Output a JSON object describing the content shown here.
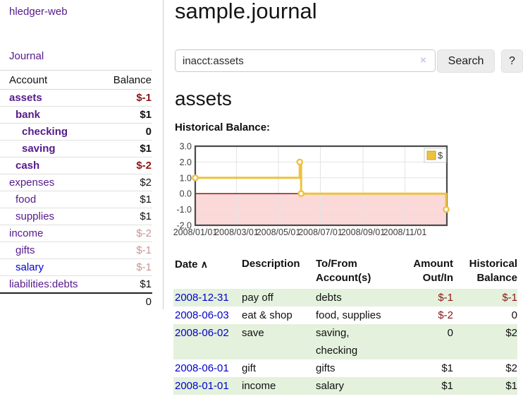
{
  "app": {
    "brand": "hledger-web",
    "nav_journal": "Journal"
  },
  "sidebar": {
    "header_account": "Account",
    "header_balance": "Balance",
    "accounts": [
      {
        "name": "assets",
        "indent": 1,
        "bold": true,
        "link": "purple",
        "balance": "$-1",
        "bal_style": "neg"
      },
      {
        "name": "bank",
        "indent": 2,
        "bold": true,
        "link": "purple",
        "balance": "$1",
        "bal_style": ""
      },
      {
        "name": "checking",
        "indent": 3,
        "bold": true,
        "link": "purple",
        "balance": "0",
        "bal_style": ""
      },
      {
        "name": "saving",
        "indent": 3,
        "bold": true,
        "link": "purple",
        "balance": "$1",
        "bal_style": ""
      },
      {
        "name": "cash",
        "indent": 2,
        "bold": true,
        "link": "purple",
        "balance": "$-2",
        "bal_style": "neg"
      },
      {
        "name": "expenses",
        "indent": 1,
        "bold": false,
        "link": "purple",
        "balance": "$2",
        "bal_style": ""
      },
      {
        "name": "food",
        "indent": 2,
        "bold": false,
        "link": "purple",
        "balance": "$1",
        "bal_style": ""
      },
      {
        "name": "supplies",
        "indent": 2,
        "bold": false,
        "link": "purple",
        "balance": "$1",
        "bal_style": ""
      },
      {
        "name": "income",
        "indent": 1,
        "bold": false,
        "link": "purple",
        "balance": "$-2",
        "bal_style": "dim"
      },
      {
        "name": "gifts",
        "indent": 2,
        "bold": false,
        "link": "purple",
        "balance": "$-1",
        "bal_style": "dim"
      },
      {
        "name": "salary",
        "indent": 2,
        "bold": false,
        "link": "blue",
        "balance": "$-1",
        "bal_style": "dim"
      },
      {
        "name": "liabilities:debts",
        "indent": 1,
        "bold": false,
        "link": "purple",
        "balance": "$1",
        "bal_style": ""
      }
    ],
    "total": "0"
  },
  "header": {
    "title": "sample.journal"
  },
  "search": {
    "value": "inacct:assets",
    "clear_icon": "×",
    "button_label": "Search",
    "help_label": "?"
  },
  "account_page": {
    "heading": "assets",
    "chart_title": "Historical Balance:"
  },
  "chart_data": {
    "type": "line",
    "step": true,
    "title": "Historical Balance",
    "series": [
      {
        "name": "$",
        "color": "#edc240",
        "points": [
          [
            "2008-01-01",
            1
          ],
          [
            "2008-06-01",
            2
          ],
          [
            "2008-06-03",
            0
          ],
          [
            "2008-12-31",
            -1
          ]
        ]
      }
    ],
    "xrange": [
      "2008-01-01",
      "2009-01-01"
    ],
    "ylim": [
      -2,
      3
    ],
    "ytick_values": [
      3,
      2,
      1,
      0,
      -1,
      -2
    ],
    "ytick_labels": [
      "3.0",
      "2.0",
      "1.0",
      "0.0",
      "-1.0",
      "-2.0"
    ],
    "xtick_dates": [
      "2008-01-01",
      "2008-03-01",
      "2008-05-01",
      "2008-07-01",
      "2008-09-01",
      "2008-11-01"
    ],
    "xtick_labels": [
      "2008/01/01",
      "2008/03/01",
      "2008/05/01",
      "2008/07/01",
      "2008/09/01",
      "2008/11/01"
    ],
    "legend": [
      "$"
    ],
    "legend_position": "top-right",
    "grid": true,
    "colors": {
      "line": "#edc240",
      "point_fill": "#ffffff",
      "negative_region": "#fbd9d9",
      "zero_line": "#8b0000",
      "grid": "#e4e4e4",
      "border": "#4a4a4a",
      "tick_text": "#3c3c3c"
    }
  },
  "register": {
    "columns": [
      "Date",
      "Description",
      "To/From Account(s)",
      "Amount Out/In",
      "Historical Balance"
    ],
    "sort_indicator": "∧",
    "rows": [
      {
        "date": "2008-12-31",
        "description": "pay off",
        "accounts": "debts",
        "amount": "$-1",
        "amount_neg": true,
        "balance": "$-1",
        "balance_neg": true
      },
      {
        "date": "2008-06-03",
        "description": "eat & shop",
        "accounts": "food, supplies",
        "amount": "$-2",
        "amount_neg": true,
        "balance": "0",
        "balance_neg": false
      },
      {
        "date": "2008-06-02",
        "description": "save",
        "accounts": "saving, checking",
        "amount": "0",
        "amount_neg": false,
        "balance": "$2",
        "balance_neg": false
      },
      {
        "date": "2008-06-01",
        "description": "gift",
        "accounts": "gifts",
        "amount": "$1",
        "amount_neg": false,
        "balance": "$2",
        "balance_neg": false
      },
      {
        "date": "2008-01-01",
        "description": "income",
        "accounts": "salary",
        "amount": "$1",
        "amount_neg": false,
        "balance": "$1",
        "balance_neg": false
      }
    ]
  }
}
